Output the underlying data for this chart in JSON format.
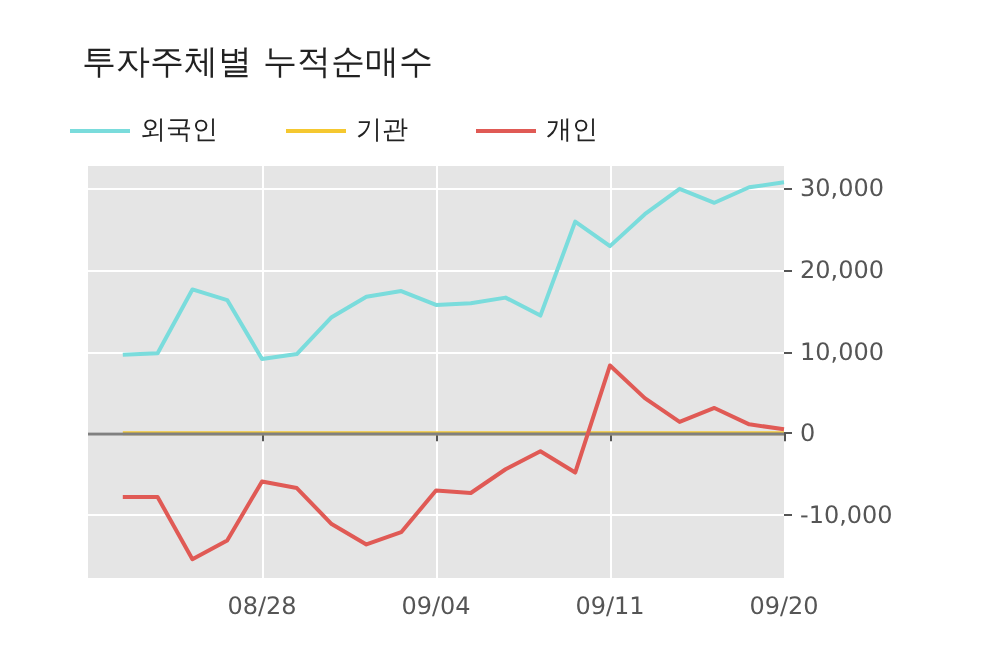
{
  "chart_data": {
    "type": "line",
    "title": "투자주체별 누적순매수",
    "categories": [
      null,
      null,
      null,
      null,
      "08/28",
      null,
      null,
      null,
      null,
      "09/04",
      null,
      null,
      null,
      null,
      "09/11",
      null,
      null,
      null,
      null,
      "09/20"
    ],
    "series": [
      {
        "name": "외국인",
        "color": "#7adcdc",
        "values": [
          9600,
          9800,
          17600,
          16300,
          9100,
          9700,
          14200,
          16700,
          17400,
          15700,
          15900,
          16600,
          14400,
          25900,
          22900,
          26800,
          29900,
          28200,
          30100,
          30700
        ]
      },
      {
        "name": "기관",
        "color": "#f5c830",
        "values": [
          0,
          0,
          0,
          0,
          0,
          0,
          0,
          0,
          0,
          0,
          0,
          0,
          0,
          0,
          0,
          0,
          0,
          0,
          0,
          0
        ]
      },
      {
        "name": "개인",
        "color": "#e05a55",
        "values": [
          -7800,
          -7800,
          -15400,
          -13100,
          -5900,
          -6700,
          -11100,
          -13600,
          -12100,
          -7000,
          -7300,
          -4400,
          -2200,
          -4800,
          8300,
          4300,
          1400,
          3100,
          1100,
          500
        ]
      }
    ],
    "ylim": [
      -17700,
      32700
    ],
    "yticks": [
      {
        "value": -10000,
        "label": "-10,000"
      },
      0,
      {
        "value": 10000,
        "label": "10,000"
      },
      {
        "value": 20000,
        "label": "20,000"
      },
      {
        "value": 30000,
        "label": "30,000"
      }
    ],
    "ref_lines": [
      {
        "axis": "y",
        "value": 0,
        "color": "#808080"
      }
    ],
    "grid": true,
    "legend": "top left",
    "marker": "none",
    "line_style": "solid"
  }
}
